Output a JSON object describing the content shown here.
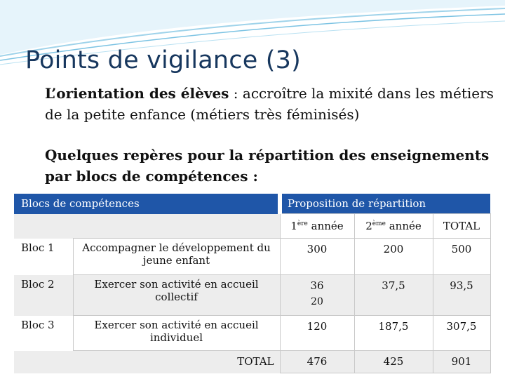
{
  "title": "Points de vigilance (3)",
  "paragraph1": {
    "bold": "L’orientation des élèves",
    "rest": " : accroître la mixité dans les métiers de la petite enfance (métiers très féminisés)"
  },
  "paragraph2": "Quelques repères pour la répartition des enseignements par blocs de compétences :",
  "table": {
    "header_left": "Blocs de compétences",
    "header_right": "Proposition de répartition",
    "year1": {
      "num": "1",
      "sup": "ère",
      "rest": " année"
    },
    "year2": {
      "num": "2",
      "sup": "ème",
      "rest": " année"
    },
    "total_col": "TOTAL",
    "rows": [
      {
        "bloc": "Bloc 1",
        "desc": "Accompagner le développement du jeune enfant",
        "y1": "300",
        "y2": "200",
        "total": "500"
      },
      {
        "bloc": "Bloc 2",
        "desc": "Exercer son activité en accueil collectif",
        "y1": "36",
        "y1b": "20",
        "y2": "37,5",
        "total": "93,5"
      },
      {
        "bloc": "Bloc 3",
        "desc": "Exercer son activité en accueil individuel",
        "y1": "120",
        "y2": "187,5",
        "total": "307,5"
      }
    ],
    "total_row": {
      "label": "TOTAL",
      "y1": "476",
      "y2": "425",
      "total": "901"
    }
  },
  "colors": {
    "title": "#17375e",
    "header_bg": "#1f56a8",
    "row_grey": "#ededed",
    "swoosh": "#9fd3ea"
  }
}
